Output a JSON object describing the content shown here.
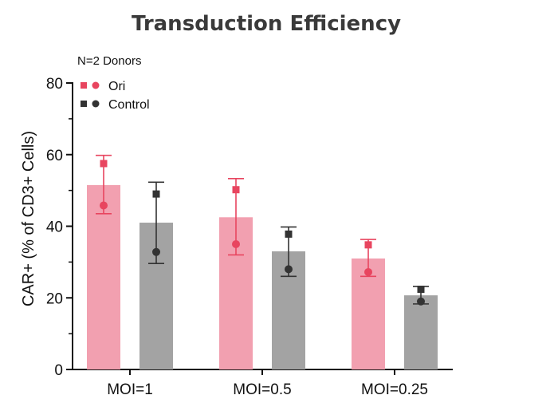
{
  "chart_data": {
    "type": "bar",
    "title": "Transduction Efficiency",
    "subtitle": "N=2 Donors",
    "xlabel": "",
    "ylabel": "CAR+ (% of CD3+ Cells)",
    "ylim": [
      0,
      80
    ],
    "yticks": [
      0,
      20,
      40,
      60,
      80
    ],
    "categories": [
      "MOI=1",
      "MOI=0.5",
      "MOI=0.25"
    ],
    "grid": false,
    "legend_position": "top-left",
    "series": [
      {
        "name": "Ori",
        "bar_color": "#f2a0b0",
        "marker_color": "#e8455f",
        "values": [
          51.5,
          42.5,
          31
        ],
        "error_low": [
          43.5,
          32,
          26
        ],
        "error_high": [
          59.8,
          53.3,
          36.3
        ],
        "donor_square": [
          57.5,
          50.2,
          34.8
        ],
        "donor_circle": [
          45.8,
          35,
          27.2
        ]
      },
      {
        "name": "Control",
        "bar_color": "#a3a3a3",
        "marker_color": "#333333",
        "values": [
          41,
          33,
          20.7
        ],
        "error_low": [
          29.6,
          26,
          18.3
        ],
        "error_high": [
          52.3,
          39.8,
          23.2
        ],
        "donor_square": [
          49,
          37.8,
          22.4
        ],
        "donor_circle": [
          32.8,
          28,
          19
        ]
      }
    ]
  }
}
